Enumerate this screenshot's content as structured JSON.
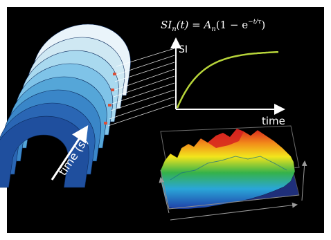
{
  "formula": {
    "lhs": "SI",
    "lhs_sub": "n",
    "arg": "(t) = A",
    "coef_sub": "n",
    "bracket": "(1 − e",
    "exponent": "−t/τ",
    "close": ")"
  },
  "plot": {
    "ylabel": "SI",
    "xlabel": "time",
    "curve_color": "#b7d43a"
  },
  "stack": {
    "axis_label": "time (s)",
    "colors": [
      "#eaf4fa",
      "#cfe8f3",
      "#a9d9ef",
      "#7fc3e8",
      "#55a6d8",
      "#3a86c8",
      "#2a66b4",
      "#1f4f9e"
    ]
  },
  "surface": {
    "colormap": [
      "#1f3fa8",
      "#2aa6d8",
      "#35b24a",
      "#f2e51c",
      "#f28a1a",
      "#d6221e"
    ]
  }
}
